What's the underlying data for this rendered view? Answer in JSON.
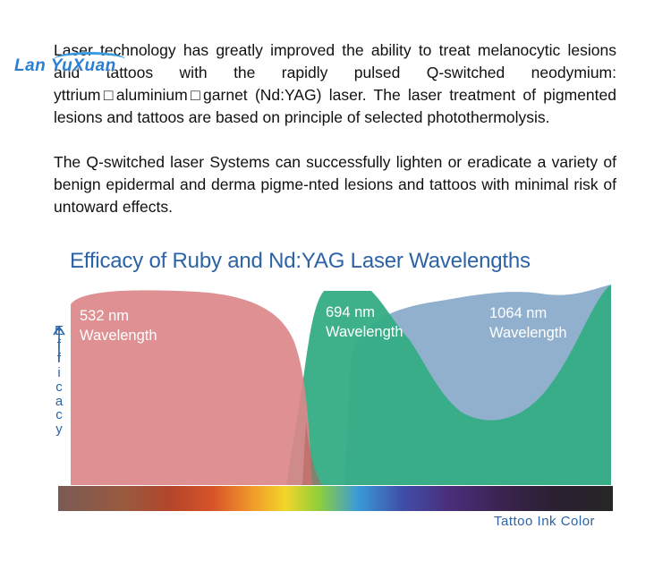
{
  "article": {
    "paragraph1": "Laser technology has greatly improved the ability to treat melanocytic lesions and tattoos with the rapidly pulsed Q-switched neodymium: yttrium□aluminium□garnet (Nd:YAG) laser. The laser treatment of pigmented lesions and tattoos are based on principle of selected photothermolysis.",
    "paragraph2": "The Q-switched laser Systems can successfully lighten or eradicate a variety of benign epidermal and derma pigme-nted lesions and tattoos with minimal risk of untoward effects."
  },
  "watermark": {
    "text": "Lan YuXuan"
  },
  "figure": {
    "title": "Efficacy of Ruby and Nd:YAG Laser Wavelengths",
    "bands": [
      {
        "line1": "532 nm",
        "line2": "Wavelength",
        "color": "#db878a"
      },
      {
        "line1": "694 nm",
        "line2": "Wavelength",
        "color": "#35ad84"
      },
      {
        "line1": "1064 nm",
        "line2": "Wavelength",
        "color": "#8aaccb"
      }
    ],
    "y_axis_label": "Efficacy",
    "x_axis_label": "Tattoo Ink Color",
    "arrow_icon": "up-arrow-icon"
  }
}
